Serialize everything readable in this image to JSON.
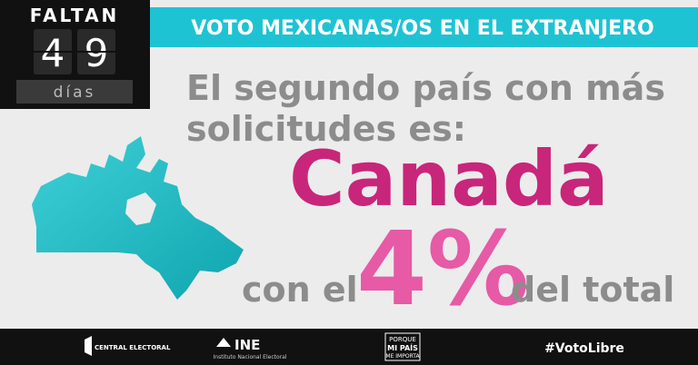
{
  "countdown": {
    "label": "FALTAN",
    "digits": [
      "4",
      "9"
    ],
    "unit": "días"
  },
  "banner": {
    "title": "VOTO MEXICANAS/OS EN EL EXTRANJERO"
  },
  "headline": {
    "lines": [
      "El segundo país con más",
      "solicitudes es:"
    ]
  },
  "country": "Canadá",
  "share": {
    "prefix": "con el",
    "value": "4%",
    "suffix": "del total"
  },
  "footer": {
    "central_electoral": "CENTRAL ELECTORAL",
    "ine": "INE",
    "ine_name": "Instituto Nacional Electoral",
    "campaign": [
      "PORQUE",
      "MI PAÍS",
      "ME IMPORTA"
    ],
    "hashtag": "#VotoLibre"
  }
}
